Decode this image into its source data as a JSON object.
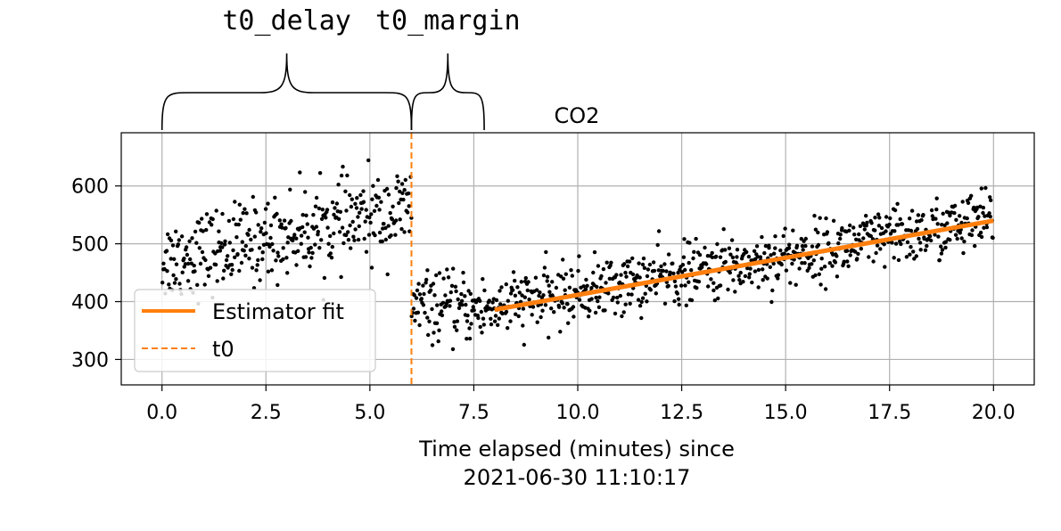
{
  "chart_data": {
    "type": "scatter",
    "title": "CO2",
    "xlabel_line1": "Time elapsed (minutes) since",
    "xlabel_line2": "2021-06-30 11:10:17",
    "ylabel": "",
    "xlim": [
      -0.98,
      20.98
    ],
    "ylim": [
      256,
      692
    ],
    "x_ticks": [
      0.0,
      2.5,
      5.0,
      7.5,
      10.0,
      12.5,
      15.0,
      17.5,
      20.0
    ],
    "x_tick_labels": [
      "0.0",
      "2.5",
      "5.0",
      "7.5",
      "10.0",
      "12.5",
      "15.0",
      "17.5",
      "20.0"
    ],
    "y_ticks": [
      300,
      400,
      500,
      600
    ],
    "y_tick_labels": [
      "300",
      "400",
      "500",
      "600"
    ],
    "grid": true,
    "legend_position": "lower-left",
    "series": [
      {
        "name": "Estimator fit",
        "type": "line",
        "color": "#ff7f0e",
        "x": [
          8.0,
          20.0
        ],
        "y": [
          386,
          540
        ]
      },
      {
        "name": "t0",
        "type": "vline",
        "color": "#ff7f0e",
        "style": "dashed",
        "x": 6.0
      },
      {
        "type": "scatter",
        "color": "#000000",
        "segments": [
          {
            "x_start": 0.0,
            "x_end": 6.0,
            "y_start": 470,
            "y_end": 560,
            "noise": 36
          },
          {
            "x_start": 6.0,
            "x_end": 7.8,
            "y_start": 395,
            "y_end": 385,
            "noise": 28
          },
          {
            "x_start": 7.8,
            "x_end": 20.0,
            "y_start": 388,
            "y_end": 540,
            "noise": 26
          }
        ]
      }
    ],
    "annotations": [
      {
        "text": "t0_delay",
        "x_start": 0.0,
        "x_end": 6.0
      },
      {
        "text": "t0_margin",
        "x_start": 6.0,
        "x_end": 7.75
      }
    ]
  },
  "legend": {
    "items": [
      {
        "label": "Estimator fit"
      },
      {
        "label": "t0"
      }
    ]
  },
  "colors": {
    "fit": "#ff7f0e",
    "points": "#000000",
    "grid": "#b0b0b0"
  }
}
